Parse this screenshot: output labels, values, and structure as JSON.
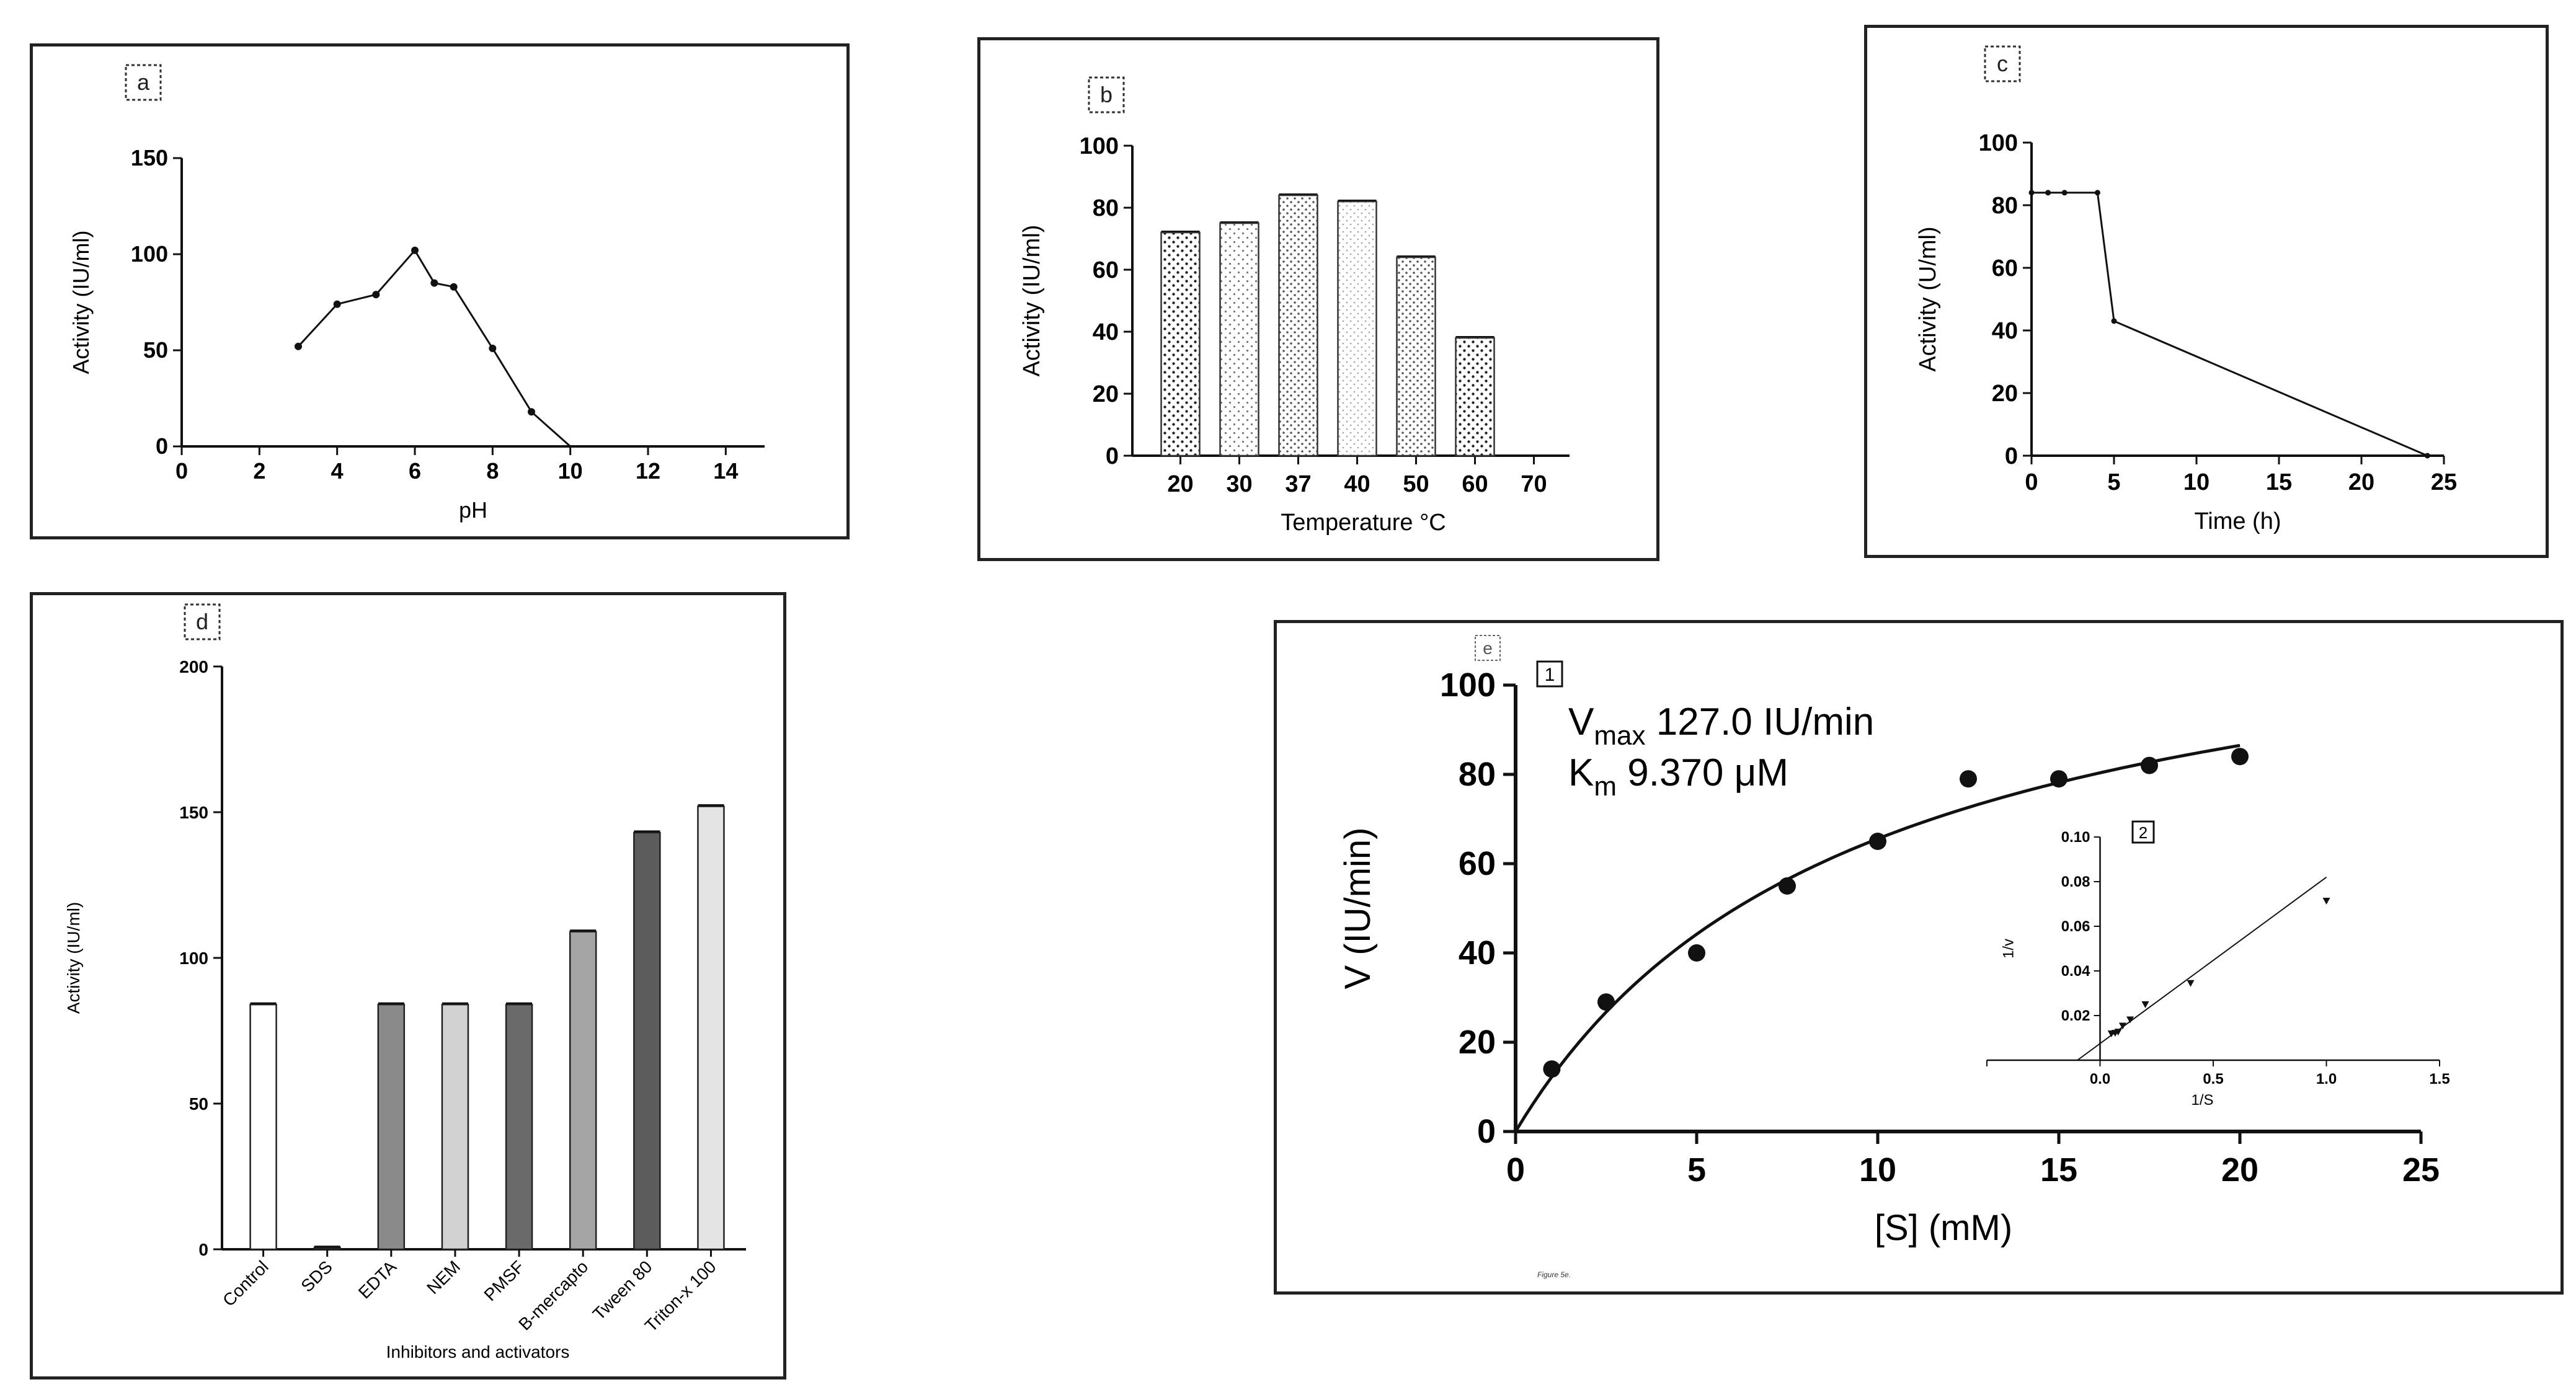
{
  "figure_caption": "Figure 5e.",
  "chart_data": [
    {
      "id": "a",
      "panel_label": "a",
      "type": "line",
      "xlabel": "pH",
      "ylabel": "Activity (IU/ml)",
      "xlim": [
        0,
        15
      ],
      "ylim": [
        0,
        150
      ],
      "xticks": [
        0,
        2,
        4,
        6,
        8,
        10,
        12,
        14
      ],
      "yticks": [
        0,
        50,
        100,
        150
      ],
      "x": [
        3,
        4,
        5,
        6,
        6.5,
        7,
        8,
        9,
        10
      ],
      "values": [
        52,
        74,
        79,
        102,
        85,
        83,
        51,
        18,
        0
      ]
    },
    {
      "id": "b",
      "panel_label": "b",
      "type": "bar",
      "xlabel": "Temperature °C",
      "ylabel": "Activity (IU/ml)",
      "ylim": [
        0,
        100
      ],
      "yticks": [
        0,
        20,
        40,
        60,
        80,
        100
      ],
      "categories": [
        "20",
        "30",
        "37",
        "40",
        "50",
        "60",
        "70"
      ],
      "values": [
        72,
        75,
        84,
        82,
        64,
        38,
        null
      ]
    },
    {
      "id": "c",
      "panel_label": "c",
      "type": "line",
      "xlabel": "Time (h)",
      "ylabel": "Activity (U/ml)",
      "xlim": [
        0,
        25
      ],
      "ylim": [
        0,
        100
      ],
      "xticks": [
        0,
        5,
        10,
        15,
        20,
        25
      ],
      "yticks": [
        0,
        20,
        40,
        60,
        80,
        100
      ],
      "x": [
        0,
        1,
        2,
        4,
        5,
        24
      ],
      "values": [
        84,
        84,
        84,
        84,
        43,
        0
      ]
    },
    {
      "id": "d",
      "panel_label": "d",
      "type": "bar",
      "xlabel": "Inhibitors and activators",
      "ylabel": "Activity (IU/ml)",
      "ylim": [
        0,
        200
      ],
      "yticks": [
        0,
        50,
        100,
        150,
        200
      ],
      "categories": [
        "Control",
        "SDS",
        "EDTA",
        "NEM",
        "PMSF",
        "B-mercapto",
        "Tween 80",
        "Triton-x 100"
      ],
      "values": [
        84,
        0.5,
        84,
        84,
        84,
        109,
        143,
        152
      ],
      "colors": [
        "#ffffff",
        "#9a9a9a",
        "#8a8a8a",
        "#d2d2d2",
        "#6a6a6a",
        "#a5a5a5",
        "#5c5c5c",
        "#e4e4e4"
      ]
    },
    {
      "id": "e",
      "panel_label": "e",
      "type": "scatter",
      "xlabel": "[S] (mM)",
      "ylabel": "V (IU/min)",
      "xlim": [
        0,
        25
      ],
      "ylim": [
        0,
        100
      ],
      "xticks": [
        0,
        5,
        10,
        15,
        20,
        25
      ],
      "yticks": [
        0,
        20,
        40,
        60,
        80,
        100
      ],
      "x": [
        1,
        2.5,
        5,
        7.5,
        10,
        12.5,
        15,
        17.5,
        20
      ],
      "values": [
        14,
        29,
        40,
        55,
        65,
        79,
        79,
        82,
        84
      ],
      "fit": {
        "vmax": 127.0,
        "km": 9.37
      },
      "annotation_box": "1",
      "vmax_label": "V",
      "vmax_sub": "max",
      "vmax_value": "127.0 IU/min",
      "km_label": "K",
      "km_sub": "m",
      "km_value": "9.370 μM",
      "inset": {
        "annotation_box": "2",
        "type": "scatter",
        "xlabel": "1/S",
        "ylabel": "1/v",
        "xlim": [
          -0.5,
          1.5
        ],
        "ylim": [
          0,
          0.1
        ],
        "xticks": [
          "0.0",
          "0.5",
          "1.0",
          "1.5"
        ],
        "xtick_values": [
          0,
          0.5,
          1.0,
          1.5
        ],
        "yticks": [
          "0.02",
          "0.04",
          "0.06",
          "0.08",
          "0.10"
        ],
        "ytick_values": [
          0.02,
          0.04,
          0.06,
          0.08,
          0.1
        ],
        "x": [
          0.05,
          0.067,
          0.08,
          0.1,
          0.133,
          0.2,
          0.4,
          1.0
        ],
        "values": [
          0.0119,
          0.0122,
          0.0127,
          0.0154,
          0.0182,
          0.025,
          0.0345,
          0.0714
        ],
        "fit_line": {
          "x": [
            -0.1,
            1.0
          ],
          "y": [
            0.0,
            0.082
          ]
        }
      }
    }
  ]
}
